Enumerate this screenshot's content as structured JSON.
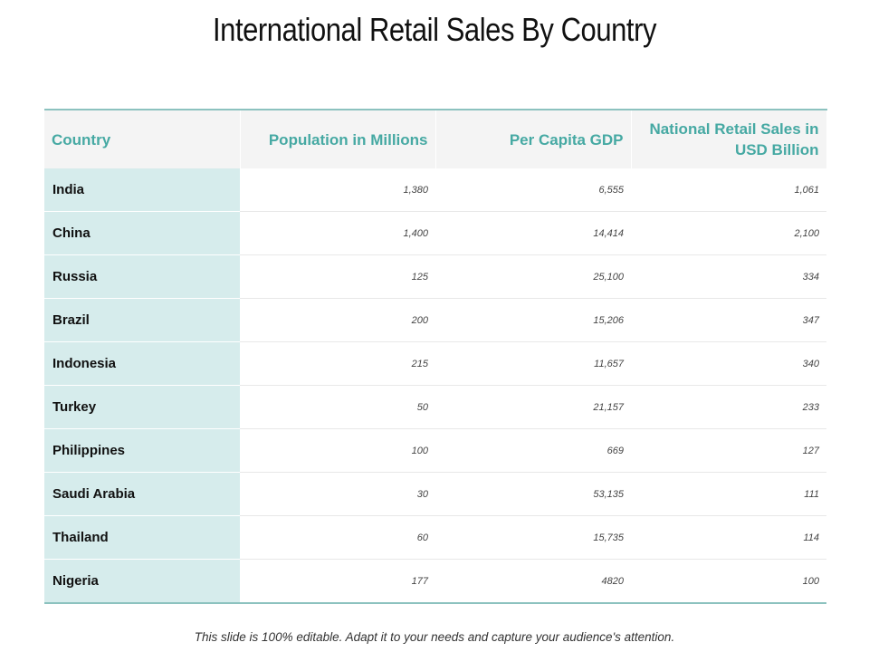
{
  "slide": {
    "title": "International Retail Sales By Country",
    "footer": "This slide is 100% editable.  Adapt it to your needs and capture your audience's attention."
  },
  "table": {
    "headers": [
      "Country",
      "Population in Millions",
      "Per Capita GDP",
      "National Retail Sales in USD Billion"
    ],
    "rows": [
      {
        "country": "India",
        "population": "1,380",
        "gdp": "6,555",
        "retail": "1,061"
      },
      {
        "country": "China",
        "population": "1,400",
        "gdp": "14,414",
        "retail": "2,100"
      },
      {
        "country": "Russia",
        "population": "125",
        "gdp": "25,100",
        "retail": "334"
      },
      {
        "country": "Brazil",
        "population": "200",
        "gdp": "15,206",
        "retail": "347"
      },
      {
        "country": "Indonesia",
        "population": "215",
        "gdp": "11,657",
        "retail": "340"
      },
      {
        "country": "Turkey",
        "population": "50",
        "gdp": "21,157",
        "retail": "233"
      },
      {
        "country": "Philippines",
        "population": "100",
        "gdp": "669",
        "retail": "127"
      },
      {
        "country": "Saudi Arabia",
        "population": "30",
        "gdp": "53,135",
        "retail": "111"
      },
      {
        "country": "Thailand",
        "population": "60",
        "gdp": "15,735",
        "retail": "114"
      },
      {
        "country": "Nigeria",
        "population": "177",
        "gdp": "4820",
        "retail": "100"
      }
    ]
  },
  "colors": {
    "header_text": "#46a9a3",
    "first_column_fill": "#d6ecec",
    "table_border": "#8cc2bf"
  }
}
